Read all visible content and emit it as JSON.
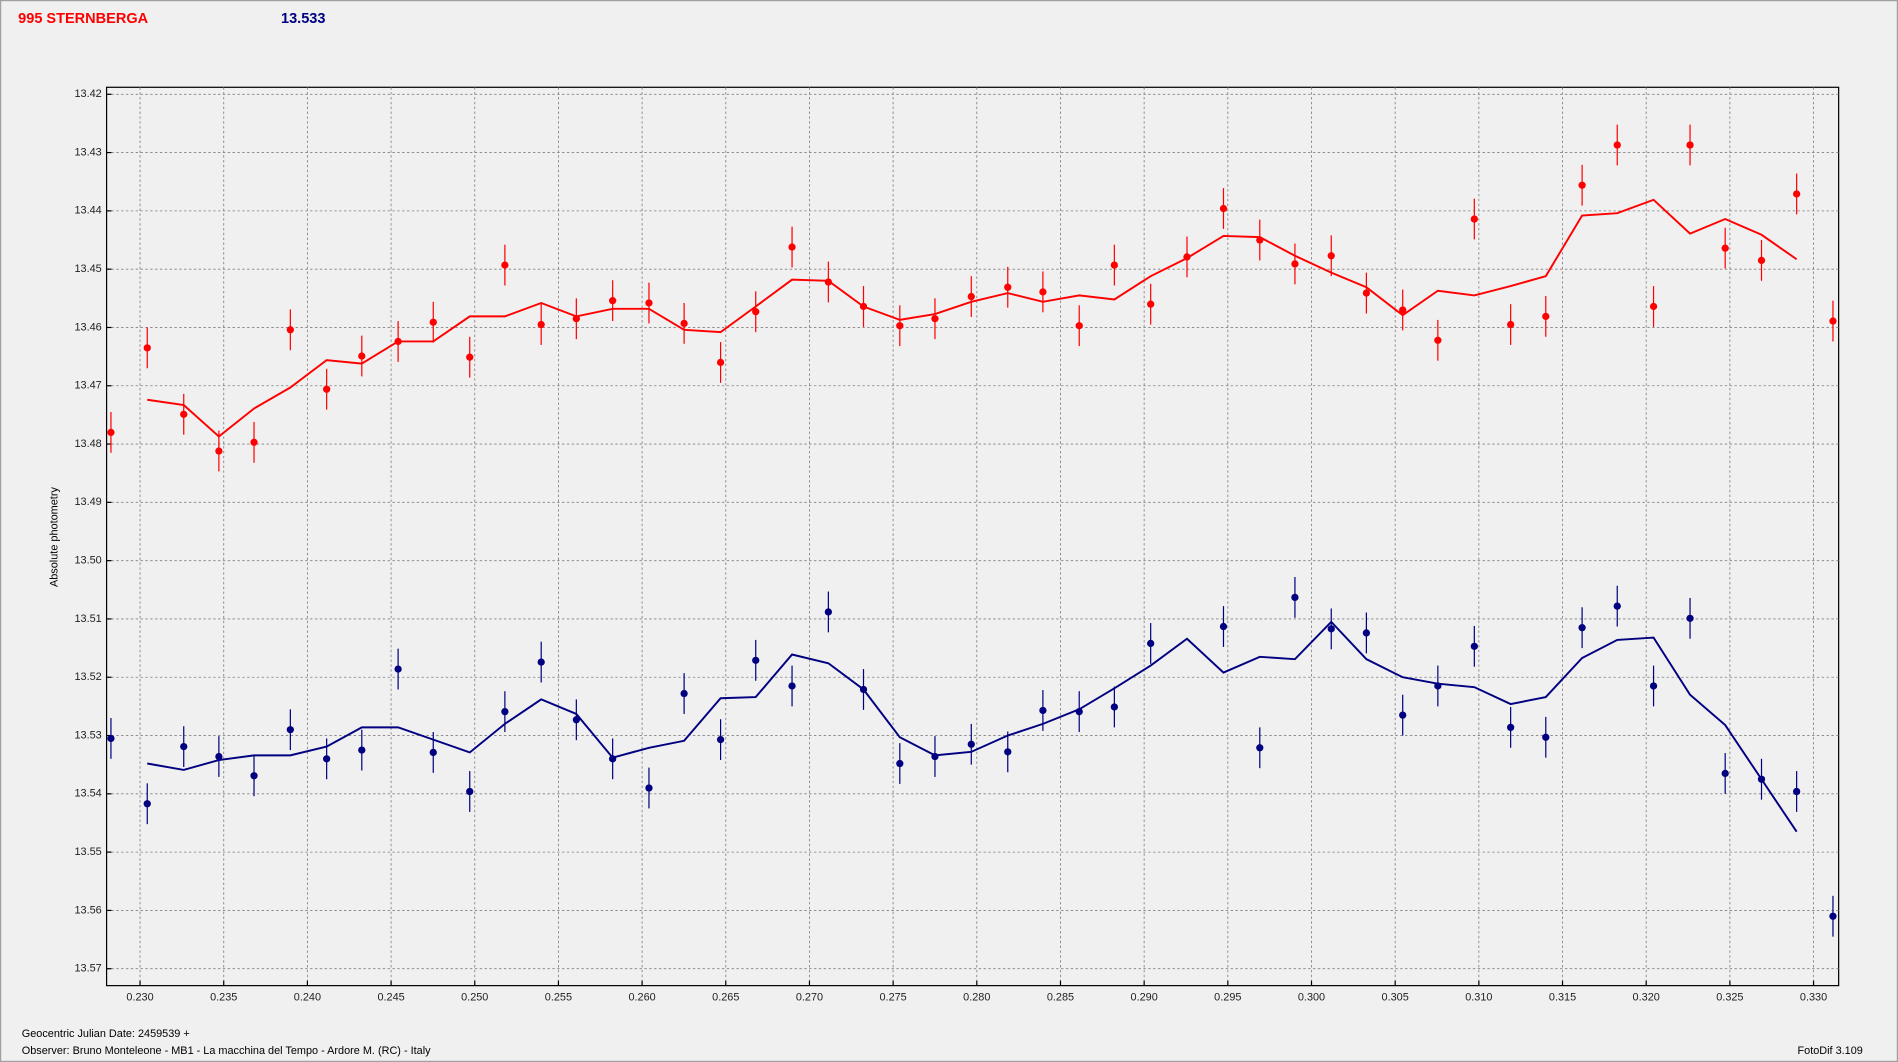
{
  "chart_data": {
    "type": "scatter",
    "title": "995 STERNBERGA",
    "subtitle": "13.533",
    "ylabel": "Absolute photometry",
    "xlabel": "Geocentric Julian Date: 2459539 +",
    "observer": "Observer: Bruno Monteleone - MB1 - La macchina del Tempo - Ardore M. (RC) - Italy",
    "software": "FotoDif 3.109",
    "xlim": [
      0.228,
      0.3315
    ],
    "ylim": [
      13.4188,
      13.5729
    ],
    "y_inverted": true,
    "grid": true,
    "xticks": [
      {
        "value": 0.23,
        "label": "0.230"
      },
      0.235,
      {
        "value": 0.24,
        "label": "0.240"
      },
      0.245,
      {
        "value": 0.25,
        "label": "0.250"
      },
      0.255,
      {
        "value": 0.26,
        "label": "0.260"
      },
      0.265,
      {
        "value": 0.27,
        "label": "0.270"
      },
      0.275,
      {
        "value": 0.28,
        "label": "0.280"
      },
      0.285,
      {
        "value": 0.29,
        "label": "0.290"
      },
      0.295,
      {
        "value": 0.3,
        "label": "0.300"
      },
      0.305,
      {
        "value": 0.31,
        "label": "0.310"
      },
      0.315,
      {
        "value": 0.32,
        "label": "0.320"
      },
      0.325,
      {
        "value": 0.33,
        "label": "0.330"
      }
    ],
    "yticks": [
      13.42,
      13.43,
      13.44,
      13.45,
      13.46,
      13.47,
      13.48,
      13.49,
      {
        "value": 13.5,
        "label": "13.50"
      },
      13.51,
      13.52,
      13.53,
      13.54,
      13.55,
      13.56,
      13.57
    ],
    "x": [
      0.22826,
      0.23043,
      0.23261,
      0.23471,
      0.23681,
      0.23898,
      0.24115,
      0.24325,
      0.24542,
      0.24752,
      0.2497,
      0.2518,
      0.25397,
      0.25607,
      0.25824,
      0.26041,
      0.26251,
      0.26469,
      0.26679,
      0.26896,
      0.27113,
      0.27323,
      0.2754,
      0.2775,
      0.27967,
      0.28185,
      0.28395,
      0.28612,
      0.28822,
      0.29039,
      0.29256,
      0.29474,
      0.29691,
      0.29901,
      0.30118,
      0.30328,
      0.30545,
      0.30755,
      0.30973,
      0.3119,
      0.314,
      0.31617,
      0.31827,
      0.32044,
      0.32262,
      0.32472,
      0.32689,
      0.32899,
      0.33116
    ],
    "series": [
      {
        "color": "#ff0000",
        "error": 0.0035,
        "values": [
          13.478,
          13.4635,
          13.4749,
          13.4812,
          13.4797,
          13.4604,
          13.4706,
          13.4649,
          13.4624,
          13.4591,
          13.4651,
          13.4493,
          13.4595,
          13.4585,
          13.4554,
          13.4558,
          13.4593,
          13.466,
          13.4573,
          13.4462,
          13.4522,
          13.4564,
          13.4597,
          13.4585,
          13.4547,
          13.4531,
          13.4539,
          13.4597,
          13.4493,
          13.456,
          13.4479,
          13.4396,
          13.445,
          13.4491,
          13.4477,
          13.4541,
          13.457,
          13.4622,
          13.4414,
          13.4595,
          13.4581,
          13.4356,
          13.4287,
          13.4564,
          13.4287,
          13.4464,
          13.4485,
          13.4371,
          13.4589
        ],
        "fit": [
          null,
          13.4724,
          13.4733,
          13.4787,
          13.4739,
          13.4703,
          13.4656,
          13.4662,
          13.4624,
          13.4624,
          13.4581,
          13.4581,
          13.4558,
          13.4581,
          13.4568,
          13.4568,
          13.4604,
          13.4608,
          13.4564,
          13.4518,
          13.452,
          13.4564,
          13.4587,
          13.4577,
          13.4556,
          13.4541,
          13.4556,
          13.4545,
          13.4552,
          13.4512,
          13.4481,
          13.4443,
          13.4445,
          13.4477,
          13.4506,
          13.4531,
          13.4579,
          13.4537,
          13.4545,
          13.4529,
          13.4512,
          13.4408,
          13.4404,
          13.4381,
          13.4439,
          13.4414,
          13.4441,
          13.4483,
          null
        ]
      },
      {
        "color": "#000080",
        "error": 0.0035,
        "values": [
          13.5305,
          13.5417,
          13.5319,
          13.5336,
          13.5369,
          13.529,
          13.534,
          13.5325,
          13.5186,
          13.5329,
          13.5396,
          13.5259,
          13.5174,
          13.5273,
          13.534,
          13.539,
          13.5228,
          13.5307,
          13.5171,
          13.5215,
          13.5088,
          13.5221,
          13.5348,
          13.5336,
          13.5315,
          13.5328,
          13.5257,
          13.5259,
          13.5251,
          13.5142,
          null,
          13.5113,
          13.5321,
          13.5063,
          13.5117,
          13.5124,
          13.5265,
          13.5215,
          13.5147,
          13.5286,
          13.5303,
          13.5115,
          13.5078,
          13.5215,
          13.5099,
          13.5365,
          13.5375,
          13.5396,
          13.561
        ],
        "fit": [
          null,
          13.5348,
          13.5359,
          13.5342,
          13.5334,
          13.5334,
          13.5319,
          13.5286,
          13.5286,
          13.5307,
          13.5329,
          13.528,
          13.5238,
          13.5263,
          13.5338,
          13.5321,
          13.5309,
          13.5236,
          13.5234,
          13.5161,
          13.5176,
          13.5221,
          13.5303,
          13.5334,
          13.5328,
          13.53,
          13.528,
          13.5255,
          13.5219,
          13.518,
          13.5134,
          13.5192,
          13.5165,
          13.5169,
          13.5105,
          13.5169,
          13.52,
          13.5211,
          13.5217,
          13.5246,
          13.5234,
          13.5167,
          13.5136,
          13.5132,
          13.523,
          13.5282,
          13.5375,
          13.5465,
          null
        ]
      }
    ]
  }
}
